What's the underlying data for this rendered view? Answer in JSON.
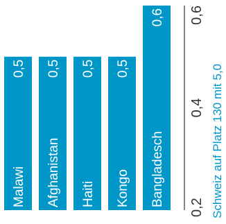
{
  "chart_data": {
    "type": "bar",
    "orientation": "horizontal-rotated",
    "categories": [
      "Malawi",
      "Afghanistan",
      "Haiti",
      "Kongo",
      "Bangladesch"
    ],
    "values": [
      0.5,
      0.5,
      0.5,
      0.5,
      0.6
    ],
    "value_labels": [
      "0,5",
      "0,5",
      "0,5",
      "0,5",
      "0,6"
    ],
    "axis_ticks": [
      {
        "value": 0.2,
        "label": "0,2"
      },
      {
        "value": 0.4,
        "label": "0,4"
      },
      {
        "value": 0.6,
        "label": "0,6"
      }
    ],
    "xlim": [
      0.2,
      0.6
    ],
    "caption": "Schweiz auf Platz 130 mit 5,0",
    "grid": false,
    "colors": {
      "bar": "#0096c8",
      "bar_text": "#ffffff",
      "tick_text": "#333333",
      "caption": "#0096c8"
    }
  }
}
